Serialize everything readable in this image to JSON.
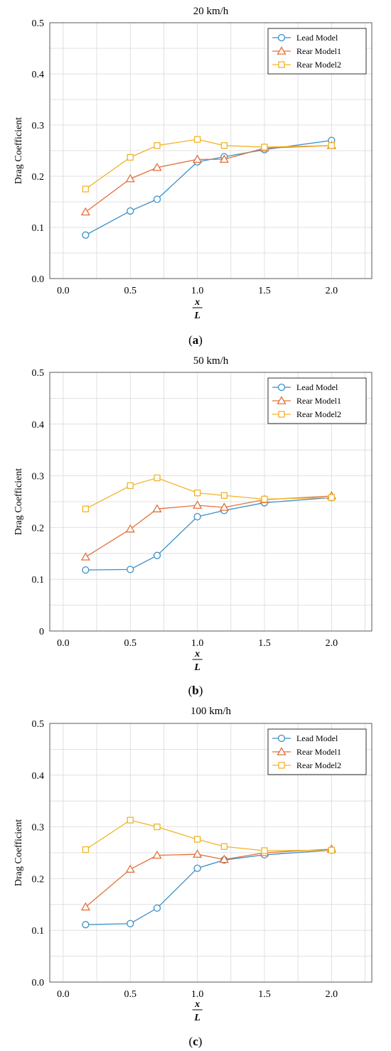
{
  "chart_data": [
    {
      "type": "line",
      "title": "20 km/h",
      "ylabel": "Drag Coefficient",
      "xlabel_num": "x",
      "xlabel_den": "L",
      "caption_letter": "a",
      "xlim": [
        -0.1,
        2.3
      ],
      "ylim": [
        0,
        0.5
      ],
      "xticks": [
        "0.0",
        "0.5",
        "1.0",
        "1.5",
        "2.0"
      ],
      "yticks": [
        "0.0",
        "0.1",
        "0.2",
        "0.3",
        "0.4",
        "0.5"
      ],
      "grid": true,
      "legend_position": "top-right",
      "x": [
        0.167,
        0.5,
        0.7,
        1.0,
        1.2,
        1.5,
        2.0
      ],
      "series": [
        {
          "name": "Lead Model",
          "marker": "circle",
          "color": "#3a8fc9",
          "values": [
            0.085,
            0.132,
            0.155,
            0.228,
            0.238,
            0.252,
            0.27
          ]
        },
        {
          "name": "Rear Model1",
          "marker": "triangle",
          "color": "#e2703a",
          "values": [
            0.13,
            0.195,
            0.217,
            0.233,
            0.233,
            0.255,
            0.26
          ]
        },
        {
          "name": "Rear Model2",
          "marker": "square",
          "color": "#f0b429",
          "values": [
            0.175,
            0.237,
            0.26,
            0.272,
            0.26,
            0.257,
            0.26
          ]
        }
      ]
    },
    {
      "type": "line",
      "title": "50 km/h",
      "ylabel": "Drag Coefficient",
      "xlabel_num": "x",
      "xlabel_den": "L",
      "caption_letter": "b",
      "xlim": [
        -0.1,
        2.3
      ],
      "ylim": [
        0,
        0.5
      ],
      "xticks": [
        "0.0",
        "0.5",
        "1.0",
        "1.5",
        "2.0"
      ],
      "yticks": [
        "0",
        "0.1",
        "0.2",
        "0.3",
        "0.4",
        "0.5"
      ],
      "grid": true,
      "legend_position": "top-right",
      "x": [
        0.167,
        0.5,
        0.7,
        1.0,
        1.2,
        1.5,
        2.0
      ],
      "series": [
        {
          "name": "Lead Model",
          "marker": "circle",
          "color": "#3a8fc9",
          "values": [
            0.118,
            0.119,
            0.146,
            0.221,
            0.233,
            0.248,
            0.258
          ]
        },
        {
          "name": "Rear Model1",
          "marker": "triangle",
          "color": "#e2703a",
          "values": [
            0.143,
            0.197,
            0.236,
            0.243,
            0.239,
            0.254,
            0.261
          ]
        },
        {
          "name": "Rear Model2",
          "marker": "square",
          "color": "#f0b429",
          "values": [
            0.236,
            0.281,
            0.296,
            0.267,
            0.262,
            0.255,
            0.258
          ]
        }
      ]
    },
    {
      "type": "line",
      "title": "100 km/h",
      "ylabel": "Drag Coefficient",
      "xlabel_num": "x",
      "xlabel_den": "L",
      "caption_letter": "c",
      "xlim": [
        -0.1,
        2.3
      ],
      "ylim": [
        0,
        0.5
      ],
      "xticks": [
        "0.0",
        "0.5",
        "1.0",
        "1.5",
        "2.0"
      ],
      "yticks": [
        "0.0",
        "0.1",
        "0.2",
        "0.3",
        "0.4",
        "0.5"
      ],
      "grid": true,
      "legend_position": "top-right",
      "x": [
        0.167,
        0.5,
        0.7,
        1.0,
        1.2,
        1.5,
        2.0
      ],
      "series": [
        {
          "name": "Lead Model",
          "marker": "circle",
          "color": "#3a8fc9",
          "values": [
            0.111,
            0.113,
            0.143,
            0.22,
            0.236,
            0.246,
            0.255
          ]
        },
        {
          "name": "Rear Model1",
          "marker": "triangle",
          "color": "#e2703a",
          "values": [
            0.145,
            0.218,
            0.245,
            0.247,
            0.237,
            0.25,
            0.257
          ]
        },
        {
          "name": "Rear Model2",
          "marker": "square",
          "color": "#f0b429",
          "values": [
            0.256,
            0.313,
            0.3,
            0.276,
            0.262,
            0.254,
            0.255
          ]
        }
      ]
    }
  ]
}
